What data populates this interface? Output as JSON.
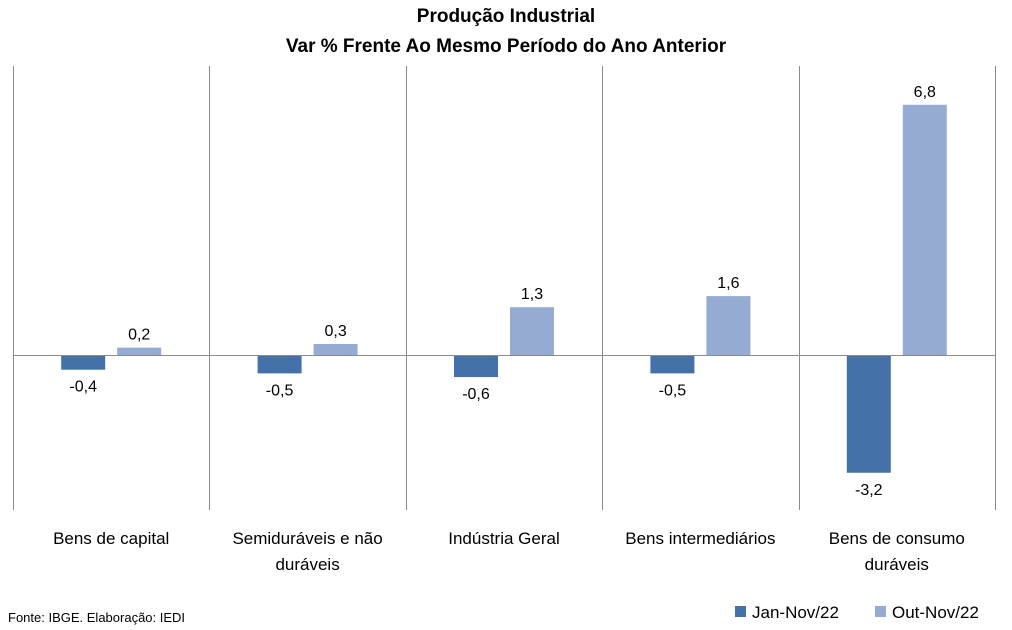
{
  "chart_data": {
    "type": "bar",
    "title": "Produção Industrial",
    "subtitle": "Var % Frente Ao Mesmo Período do Ano Anterior",
    "categories": [
      "Bens de capital",
      "Semiduráveis e não duráveis",
      "Indústria Geral",
      "Bens intermediários",
      "Bens de consumo duráveis"
    ],
    "category_label_lines": [
      [
        "Bens de capital"
      ],
      [
        "Semiduráveis e não",
        "duráveis"
      ],
      [
        "Indústria Geral"
      ],
      [
        "Bens intermediários"
      ],
      [
        "Bens de consumo",
        "duráveis"
      ]
    ],
    "series": [
      {
        "name": "Jan-Nov/22",
        "color": "#4472a8",
        "values": [
          -0.4,
          -0.5,
          -0.6,
          -0.5,
          -3.2
        ],
        "labels": [
          "-0,4",
          "-0,5",
          "-0,6",
          "-0,5",
          "-3,2"
        ]
      },
      {
        "name": "Out-Nov/22",
        "color": "#95abd2",
        "values": [
          0.2,
          0.3,
          1.3,
          1.6,
          6.8
        ],
        "labels": [
          "0,2",
          "0,3",
          "1,3",
          "1,6",
          "6,8"
        ]
      }
    ],
    "ylim": [
      -4,
      8
    ],
    "grid": false,
    "legend_position": "bottom-right",
    "xlabel": "",
    "ylabel": ""
  },
  "source_note": "Fonte: IBGE. Elaboração: IEDI"
}
